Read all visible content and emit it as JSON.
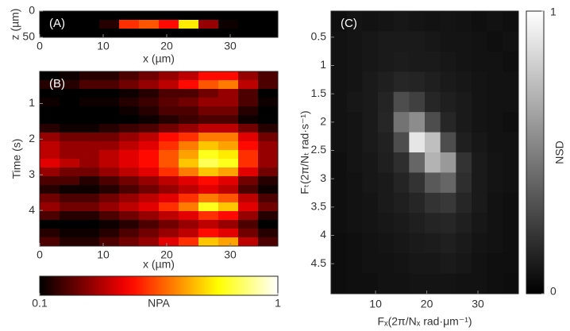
{
  "chart_data": [
    {
      "type": "heatmap",
      "panel_label": "(A)",
      "x_label": "x (µm)",
      "y_label": "z (µm)",
      "colormap": "hot",
      "xlim": [
        0,
        37.5
      ],
      "ylim": [
        0,
        50
      ],
      "xticks": [
        0,
        10,
        20,
        30
      ],
      "yticks": [
        0,
        50
      ],
      "y_reversed": true,
      "z": [
        [
          0.1,
          0.1,
          0.1,
          0.1,
          0.1,
          0.1,
          0.1,
          0.1,
          0.1,
          0.1,
          0.1,
          0.1
        ],
        [
          0.1,
          0.1,
          0.1,
          0.15,
          0.5,
          0.55,
          0.45,
          0.75,
          0.3,
          0.12,
          0.1,
          0.1
        ],
        [
          0.1,
          0.1,
          0.1,
          0.1,
          0.1,
          0.1,
          0.1,
          0.1,
          0.1,
          0.1,
          0.1,
          0.1
        ]
      ]
    },
    {
      "type": "heatmap",
      "panel_label": "(B)",
      "x_label": "x (µm)",
      "y_label": "Time (s)",
      "colormap": "hot",
      "xlim": [
        0,
        37.5
      ],
      "ylim": [
        0.1,
        5
      ],
      "xticks": [
        0,
        10,
        20,
        30
      ],
      "yticks": [
        1,
        2,
        3,
        4
      ],
      "y_reversed": true,
      "colorbar": {
        "label": "NPA",
        "lim": [
          0.1,
          1
        ],
        "ticks": [
          0.1,
          1
        ],
        "orientation": "horizontal"
      },
      "z": [
        [
          0.1,
          0.12,
          0.15,
          0.15,
          0.2,
          0.25,
          0.3,
          0.35,
          0.45,
          0.45,
          0.3,
          0.2
        ],
        [
          0.15,
          0.15,
          0.2,
          0.2,
          0.25,
          0.3,
          0.35,
          0.45,
          0.55,
          0.6,
          0.35,
          0.2
        ],
        [
          0.1,
          0.1,
          0.1,
          0.1,
          0.12,
          0.15,
          0.2,
          0.2,
          0.25,
          0.3,
          0.2,
          0.1
        ],
        [
          0.12,
          0.1,
          0.12,
          0.12,
          0.15,
          0.18,
          0.22,
          0.25,
          0.3,
          0.3,
          0.2,
          0.12
        ],
        [
          0.08,
          0.08,
          0.1,
          0.1,
          0.12,
          0.15,
          0.2,
          0.2,
          0.25,
          0.25,
          0.15,
          0.1
        ],
        [
          0.05,
          0.05,
          0.08,
          0.08,
          0.1,
          0.12,
          0.15,
          0.18,
          0.2,
          0.2,
          0.12,
          0.08
        ],
        [
          0.15,
          0.12,
          0.12,
          0.15,
          0.18,
          0.2,
          0.25,
          0.3,
          0.35,
          0.35,
          0.25,
          0.15
        ],
        [
          0.3,
          0.25,
          0.25,
          0.25,
          0.3,
          0.35,
          0.45,
          0.5,
          0.6,
          0.6,
          0.4,
          0.25
        ],
        [
          0.35,
          0.3,
          0.3,
          0.3,
          0.35,
          0.4,
          0.5,
          0.6,
          0.7,
          0.65,
          0.45,
          0.3
        ],
        [
          0.35,
          0.3,
          0.3,
          0.35,
          0.4,
          0.45,
          0.55,
          0.65,
          0.8,
          0.75,
          0.5,
          0.3
        ],
        [
          0.4,
          0.35,
          0.3,
          0.35,
          0.4,
          0.45,
          0.55,
          0.7,
          0.85,
          0.8,
          0.5,
          0.3
        ],
        [
          0.3,
          0.25,
          0.25,
          0.3,
          0.35,
          0.4,
          0.5,
          0.6,
          0.7,
          0.65,
          0.4,
          0.25
        ],
        [
          0.2,
          0.2,
          0.15,
          0.2,
          0.25,
          0.3,
          0.35,
          0.4,
          0.45,
          0.4,
          0.25,
          0.15
        ],
        [
          0.15,
          0.12,
          0.12,
          0.15,
          0.2,
          0.25,
          0.3,
          0.35,
          0.4,
          0.35,
          0.2,
          0.12
        ],
        [
          0.25,
          0.2,
          0.2,
          0.25,
          0.3,
          0.35,
          0.4,
          0.5,
          0.6,
          0.55,
          0.35,
          0.2
        ],
        [
          0.3,
          0.25,
          0.25,
          0.3,
          0.35,
          0.4,
          0.5,
          0.6,
          0.8,
          0.7,
          0.4,
          0.25
        ],
        [
          0.2,
          0.15,
          0.15,
          0.2,
          0.25,
          0.3,
          0.35,
          0.4,
          0.5,
          0.45,
          0.3,
          0.15
        ],
        [
          0.1,
          0.1,
          0.1,
          0.12,
          0.15,
          0.2,
          0.25,
          0.3,
          0.35,
          0.3,
          0.2,
          0.1
        ],
        [
          0.15,
          0.12,
          0.12,
          0.15,
          0.2,
          0.25,
          0.3,
          0.35,
          0.45,
          0.4,
          0.25,
          0.15
        ],
        [
          0.2,
          0.15,
          0.15,
          0.2,
          0.25,
          0.3,
          0.4,
          0.5,
          0.7,
          0.65,
          0.35,
          0.2
        ]
      ]
    },
    {
      "type": "heatmap",
      "panel_label": "(C)",
      "x_label": "Fₓ(2π/Nₓ  rad·μm⁻¹)",
      "y_label": "Fₜ(2π/Nₜ  rad·s⁻¹)",
      "colormap": "gray",
      "xlim": [
        1.3,
        37.9
      ],
      "ylim": [
        0.04,
        5.03
      ],
      "xticks": [
        10,
        20,
        30
      ],
      "yticks": [
        0.5,
        1,
        1.5,
        2,
        2.5,
        3,
        3.5,
        4,
        4.5
      ],
      "y_reversed": true,
      "colorbar": {
        "label": "NSD",
        "lim": [
          0,
          1
        ],
        "ticks": [
          0,
          1
        ],
        "orientation": "vertical"
      },
      "z": [
        [
          0.06,
          0.08,
          0.07,
          0.08,
          0.09,
          0.08,
          0.07,
          0.08,
          0.07,
          0.06,
          0.07,
          0.06
        ],
        [
          0.07,
          0.08,
          0.09,
          0.1,
          0.1,
          0.1,
          0.09,
          0.08,
          0.08,
          0.07,
          0.06,
          0.07
        ],
        [
          0.07,
          0.08,
          0.09,
          0.1,
          0.11,
          0.1,
          0.1,
          0.09,
          0.08,
          0.07,
          0.07,
          0.06
        ],
        [
          0.07,
          0.08,
          0.1,
          0.12,
          0.15,
          0.14,
          0.12,
          0.1,
          0.09,
          0.08,
          0.07,
          0.07
        ],
        [
          0.07,
          0.09,
          0.1,
          0.14,
          0.3,
          0.25,
          0.15,
          0.12,
          0.1,
          0.08,
          0.07,
          0.07
        ],
        [
          0.07,
          0.08,
          0.1,
          0.15,
          0.45,
          0.55,
          0.3,
          0.15,
          0.1,
          0.08,
          0.07,
          0.06
        ],
        [
          0.07,
          0.08,
          0.1,
          0.13,
          0.3,
          0.9,
          0.75,
          0.3,
          0.12,
          0.09,
          0.07,
          0.07
        ],
        [
          0.06,
          0.08,
          0.09,
          0.12,
          0.18,
          0.4,
          0.7,
          0.6,
          0.2,
          0.1,
          0.08,
          0.07
        ],
        [
          0.06,
          0.07,
          0.09,
          0.1,
          0.14,
          0.2,
          0.35,
          0.4,
          0.18,
          0.1,
          0.08,
          0.07
        ],
        [
          0.06,
          0.07,
          0.08,
          0.1,
          0.12,
          0.15,
          0.2,
          0.22,
          0.15,
          0.1,
          0.07,
          0.06
        ],
        [
          0.06,
          0.07,
          0.08,
          0.09,
          0.1,
          0.12,
          0.14,
          0.15,
          0.12,
          0.09,
          0.07,
          0.06
        ],
        [
          0.05,
          0.06,
          0.07,
          0.08,
          0.09,
          0.1,
          0.11,
          0.12,
          0.1,
          0.08,
          0.07,
          0.06
        ],
        [
          0.05,
          0.06,
          0.07,
          0.07,
          0.08,
          0.09,
          0.09,
          0.1,
          0.09,
          0.07,
          0.06,
          0.06
        ],
        [
          0.05,
          0.06,
          0.06,
          0.07,
          0.07,
          0.08,
          0.08,
          0.08,
          0.07,
          0.07,
          0.06,
          0.05
        ]
      ]
    }
  ]
}
